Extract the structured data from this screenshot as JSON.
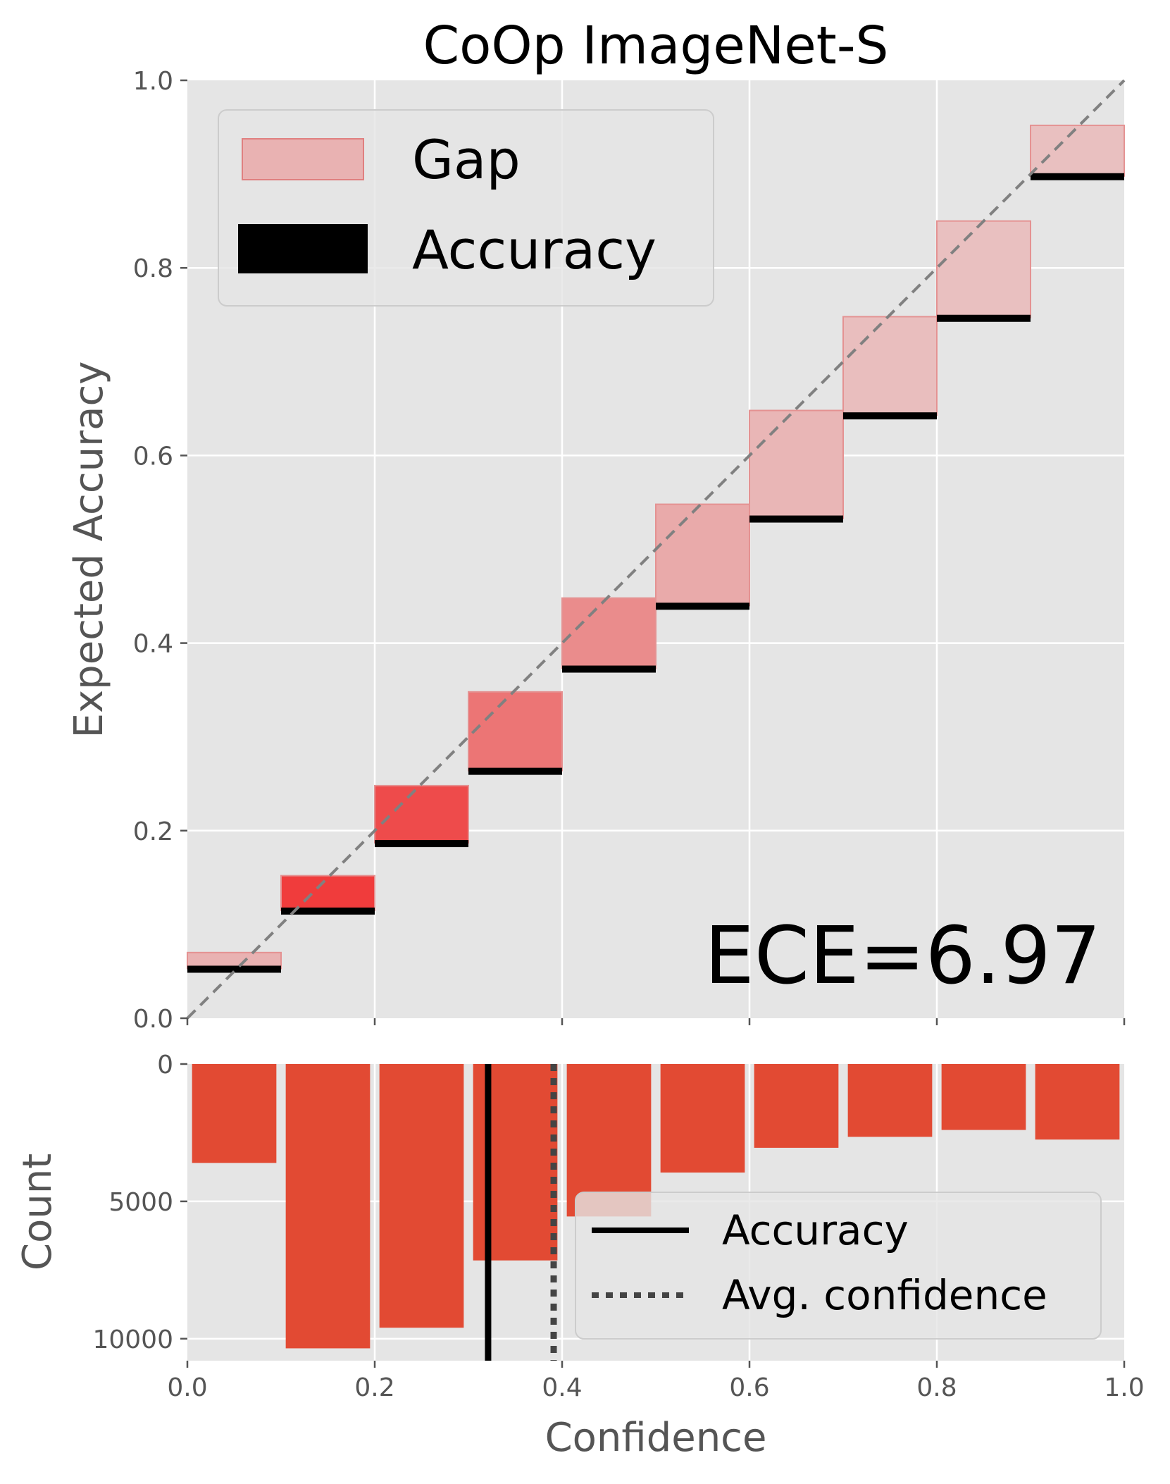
{
  "chart_data": [
    {
      "type": "bar",
      "title": "CoOp ImageNet-S",
      "ylabel": "Expected Accuracy",
      "xlim": [
        0,
        1
      ],
      "ylim": [
        0,
        1
      ],
      "xticks": [
        "0.0",
        "0.2",
        "0.4",
        "0.6",
        "0.8",
        "1.0"
      ],
      "yticks": [
        "0.0",
        "0.2",
        "0.4",
        "0.6",
        "0.8",
        "1.0"
      ],
      "grid": true,
      "legend_position": "top-left",
      "legend": [
        "Gap",
        "Accuracy"
      ],
      "bins": [
        0.0,
        0.1,
        0.2,
        0.3,
        0.4,
        0.5,
        0.6,
        0.7,
        0.8,
        0.9
      ],
      "bin_width": 0.1,
      "series": [
        {
          "name": "Accuracy",
          "values": [
            0.053,
            0.115,
            0.187,
            0.264,
            0.373,
            0.44,
            0.533,
            0.643,
            0.747,
            0.898
          ]
        },
        {
          "name": "Gap",
          "values": [
            0.07,
            0.152,
            0.248,
            0.348,
            0.448,
            0.548,
            0.648,
            0.748,
            0.85,
            0.952
          ]
        }
      ],
      "gap_colors": [
        "#e9b2b2",
        "#f03c3c",
        "#ee4b4b",
        "#ec7575",
        "#ea8c8c",
        "#e9aaaa",
        "#e9b6b6",
        "#e9bebe",
        "#e9c0c0",
        "#e9c0c0"
      ],
      "annotation": "ECE=6.97",
      "diagonal": true
    },
    {
      "type": "bar",
      "xlabel": "Confidence",
      "ylabel": "Count",
      "xlim": [
        0,
        1
      ],
      "ylim": [
        0,
        10800
      ],
      "y_inverted": true,
      "xticks": [
        "0.0",
        "0.2",
        "0.4",
        "0.6",
        "0.8",
        "1.0"
      ],
      "yticks": [
        "0",
        "5000",
        "10000"
      ],
      "ytick_values": [
        0,
        5000,
        10000
      ],
      "grid": true,
      "legend_position": "bottom-right",
      "legend": [
        "Accuracy",
        "Avg. confidence"
      ],
      "categories": [
        0.05,
        0.15,
        0.25,
        0.35,
        0.45,
        0.55,
        0.65,
        0.75,
        0.85,
        0.95
      ],
      "values": [
        3600,
        10350,
        9600,
        7150,
        5550,
        3950,
        3050,
        2650,
        2400,
        2750
      ],
      "bar_color": "#e24a33",
      "accuracy_line": 0.321,
      "avg_confidence_line": 0.391
    }
  ],
  "colors": {
    "panel_bg": "#e5e5e5",
    "grid": "#ffffff",
    "count_bar": "#e24a33",
    "diagonal": "#808080"
  }
}
